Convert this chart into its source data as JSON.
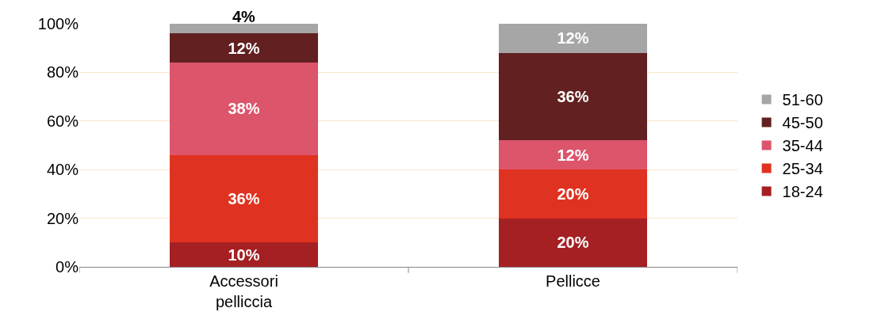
{
  "chart_data": {
    "type": "bar",
    "stacked": true,
    "categories": [
      "Accessori\npelliccia",
      "Pellicce"
    ],
    "series": [
      {
        "name": "18-24",
        "color": "#a52022",
        "values": [
          10,
          20
        ],
        "value_labels": [
          "10%",
          "20%"
        ]
      },
      {
        "name": "25-34",
        "color": "#e03220",
        "values": [
          36,
          20
        ],
        "value_labels": [
          "36%",
          "20%"
        ]
      },
      {
        "name": "35-44",
        "color": "#dc556b",
        "values": [
          38,
          12
        ],
        "value_labels": [
          "38%",
          "12%"
        ]
      },
      {
        "name": "45-50",
        "color": "#622020",
        "values": [
          12,
          36
        ],
        "value_labels": [
          "12%",
          "36%"
        ]
      },
      {
        "name": "51-60",
        "color": "#a6a6a6",
        "values": [
          4,
          12
        ],
        "value_labels": [
          "4%",
          "12%"
        ]
      }
    ],
    "ylim": [
      0,
      100
    ],
    "yticks": [
      {
        "value": 0,
        "label": "0%"
      },
      {
        "value": 20,
        "label": "20%"
      },
      {
        "value": 40,
        "label": "40%"
      },
      {
        "value": 60,
        "label": "60%"
      },
      {
        "value": 80,
        "label": "80%"
      },
      {
        "value": 100,
        "label": "100%"
      }
    ],
    "grid": "y",
    "legend": "right"
  }
}
